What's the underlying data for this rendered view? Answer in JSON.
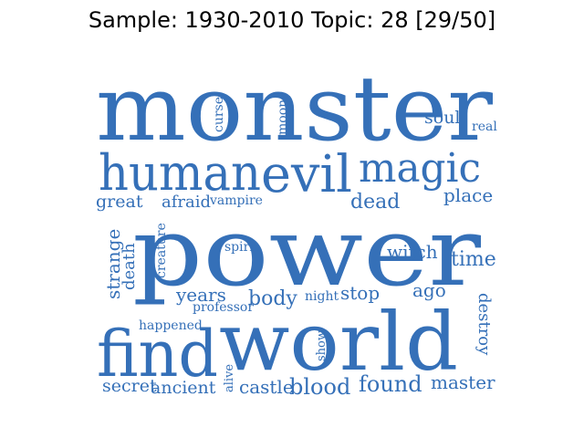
{
  "title": "Sample: 1930-2010 Topic: 28 [29/50]",
  "word_color": "#3570b8",
  "words": [
    {
      "text": "monster"
    },
    {
      "text": "soul"
    },
    {
      "text": "real"
    },
    {
      "text": "curse"
    },
    {
      "text": "moon"
    },
    {
      "text": "human"
    },
    {
      "text": "evil"
    },
    {
      "text": "magic"
    },
    {
      "text": "great"
    },
    {
      "text": "afraid"
    },
    {
      "text": "vampire"
    },
    {
      "text": "dead"
    },
    {
      "text": "place"
    },
    {
      "text": "power"
    },
    {
      "text": "strange"
    },
    {
      "text": "death"
    },
    {
      "text": "creature"
    },
    {
      "text": "spirit"
    },
    {
      "text": "witch"
    },
    {
      "text": "time"
    },
    {
      "text": "years"
    },
    {
      "text": "professor"
    },
    {
      "text": "body"
    },
    {
      "text": "night"
    },
    {
      "text": "stop"
    },
    {
      "text": "ago"
    },
    {
      "text": "destroy"
    },
    {
      "text": "happened"
    },
    {
      "text": "find"
    },
    {
      "text": "world"
    },
    {
      "text": "show"
    },
    {
      "text": "alive"
    },
    {
      "text": "secret"
    },
    {
      "text": "ancient"
    },
    {
      "text": "castle"
    },
    {
      "text": "blood"
    },
    {
      "text": "found"
    },
    {
      "text": "master"
    }
  ]
}
